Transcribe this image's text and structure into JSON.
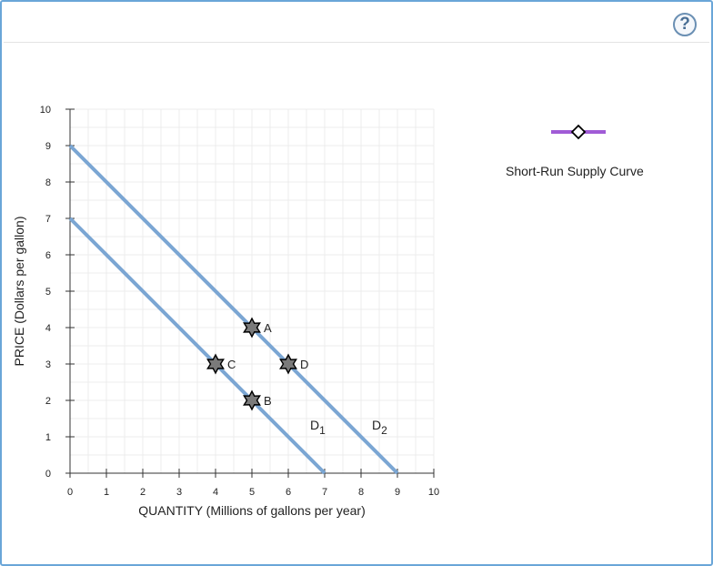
{
  "help_button": {
    "label": "?",
    "icon": "help-icon"
  },
  "legend": {
    "label": "Short-Run Supply Curve",
    "color": "#a05bd6",
    "marker": "diamond-icon"
  },
  "chart_data": {
    "type": "line",
    "xlabel": "QUANTITY (Millions of gallons per year)",
    "ylabel": "PRICE (Dollars per gallon)",
    "xlim": [
      0,
      10
    ],
    "ylim": [
      0,
      10
    ],
    "xticks": [
      "0",
      "1",
      "2",
      "3",
      "4",
      "5",
      "6",
      "7",
      "8",
      "9",
      "10"
    ],
    "yticks": [
      "0",
      "1",
      "2",
      "3",
      "4",
      "5",
      "6",
      "7",
      "8",
      "9",
      "10"
    ],
    "grid": true,
    "series": [
      {
        "name": "D1",
        "sub": "1",
        "base": "D",
        "color": "#7ba6d3",
        "points": [
          [
            0,
            7
          ],
          [
            7,
            0
          ]
        ]
      },
      {
        "name": "D2",
        "sub": "2",
        "base": "D",
        "color": "#7ba6d3",
        "points": [
          [
            0,
            9
          ],
          [
            9,
            0
          ]
        ]
      }
    ],
    "points": [
      {
        "label": "A",
        "x": 5,
        "y": 4
      },
      {
        "label": "B",
        "x": 5,
        "y": 2
      },
      {
        "label": "C",
        "x": 4,
        "y": 3
      },
      {
        "label": "D",
        "x": 6,
        "y": 3
      }
    ],
    "curve_labels": [
      {
        "base": "D",
        "sub": "1",
        "x": 6.6,
        "y": 1.2
      },
      {
        "base": "D",
        "sub": "2",
        "x": 8.3,
        "y": 1.2
      }
    ]
  }
}
